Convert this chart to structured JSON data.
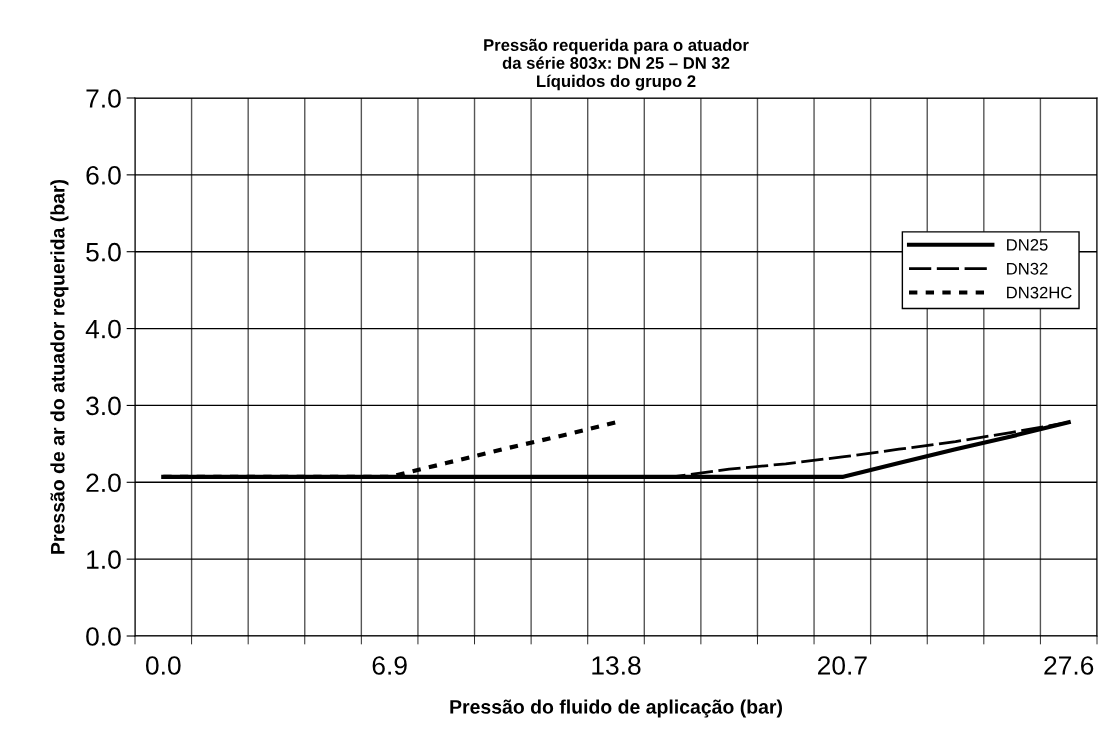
{
  "chart_data": {
    "type": "line",
    "title": "Pressão requerida para o atuador\nda série 803x: DN 25 – DN 32\nLíquidos do grupo 2",
    "xlabel": "Pressão do fluido de aplicação (bar)",
    "ylabel": "Pressão de ar do atuador requerida (bar)",
    "categories": [
      "0.0",
      null,
      null,
      null,
      "6.9",
      null,
      null,
      null,
      "13.8",
      null,
      null,
      null,
      "20.7",
      null,
      null,
      null,
      "27.6"
    ],
    "series": [
      {
        "name": "DN25",
        "color": "#000000",
        "line_style": "solid",
        "values": [
          2.07,
          2.07,
          2.07,
          2.07,
          2.07,
          2.07,
          2.07,
          2.07,
          2.07,
          2.07,
          2.07,
          2.07,
          2.07,
          2.25,
          2.43,
          2.6,
          2.78
        ]
      },
      {
        "name": "DN32",
        "color": "#000000",
        "line_style": "dashed",
        "values": [
          2.07,
          2.07,
          2.07,
          2.07,
          2.07,
          2.07,
          2.07,
          2.07,
          2.07,
          2.07,
          2.17,
          2.24,
          2.33,
          2.43,
          2.53,
          2.65,
          2.78
        ]
      },
      {
        "name": "DN32HC",
        "color": "#000000",
        "line_style": "dotted",
        "values": [
          2.07,
          2.07,
          2.07,
          2.07,
          2.07,
          2.25,
          2.43,
          2.6,
          2.78,
          null,
          null,
          null,
          null,
          null,
          null,
          null,
          null
        ]
      }
    ],
    "ylim": [
      0,
      7
    ],
    "yticks": [
      {
        "value": 0,
        "label": "0.0"
      },
      {
        "value": 1,
        "label": "1.0"
      },
      {
        "value": 2,
        "label": "2.0"
      },
      {
        "value": 3,
        "label": "3.0"
      },
      {
        "value": 4,
        "label": "4.0"
      },
      {
        "value": 5,
        "label": "5.0"
      },
      {
        "value": 6,
        "label": "6.0"
      },
      {
        "value": 7,
        "label": "7.0"
      }
    ],
    "grid": true,
    "legend": "right",
    "marker": "none"
  }
}
